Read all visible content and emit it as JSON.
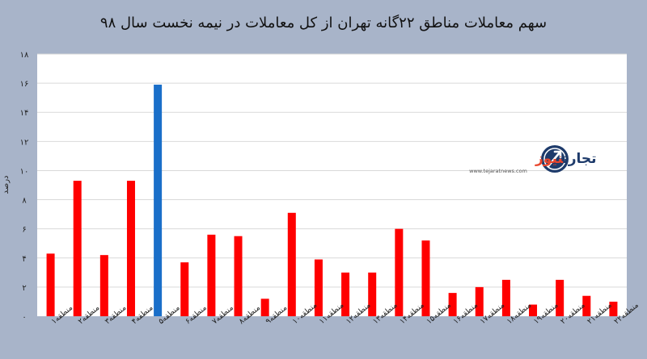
{
  "chart_data": {
    "type": "bar",
    "title": "سهم معاملات مناطق ۲۲گانه تهران از کل معاملات در نیمه نخست سال ۹۸",
    "ylabel": "درصد",
    "xlabel": "",
    "ylim": [
      0,
      18
    ],
    "yticks": [
      0,
      2,
      4,
      6,
      8,
      10,
      12,
      14,
      16,
      18
    ],
    "ytick_labels": [
      "۰",
      "۲",
      "۴",
      "۶",
      "۸",
      "۱۰",
      "۱۲",
      "۱۴",
      "۱۶",
      "۱۸"
    ],
    "grid": true,
    "legend": "none",
    "categories": [
      "منطقه۱",
      "منطقه۲",
      "منطقه۳",
      "منطقه۴",
      "منطقه۵",
      "منطقه۶",
      "منطقه۷",
      "منطقه۸",
      "منطقه۹",
      "منطقه۱۰",
      "منطقه۱۱",
      "منطقه۱۲",
      "منطقه۱۳",
      "منطقه۱۴",
      "منطقه۱۵",
      "منطقه۱۶",
      "منطقه۱۷",
      "منطقه۱۸",
      "منطقه۱۹",
      "منطقه۲۰",
      "منطقه۲۱",
      "منطقه۲۲"
    ],
    "values": [
      4.3,
      9.3,
      4.2,
      9.3,
      15.9,
      3.7,
      5.6,
      5.5,
      1.2,
      7.1,
      3.9,
      3.0,
      3.0,
      6.0,
      5.2,
      1.6,
      2.0,
      2.5,
      0.8,
      2.5,
      1.4,
      1.0
    ],
    "colors": {
      "default_bar": "#ff0000",
      "highlight_bar": "#1a6fc9",
      "highlight_index": 4,
      "plot_background": "#ffffff",
      "page_background": "#a8b4c9",
      "gridline": "#d9d9d9"
    }
  },
  "watermark": {
    "brand_text_dark": "تجارت",
    "brand_text_accent": "نیوز",
    "url": "www.tejaratnews.com",
    "icon": "arrow-up-circle-logo",
    "accent_color": "#e8452c",
    "dark_color": "#1e3b6b"
  }
}
